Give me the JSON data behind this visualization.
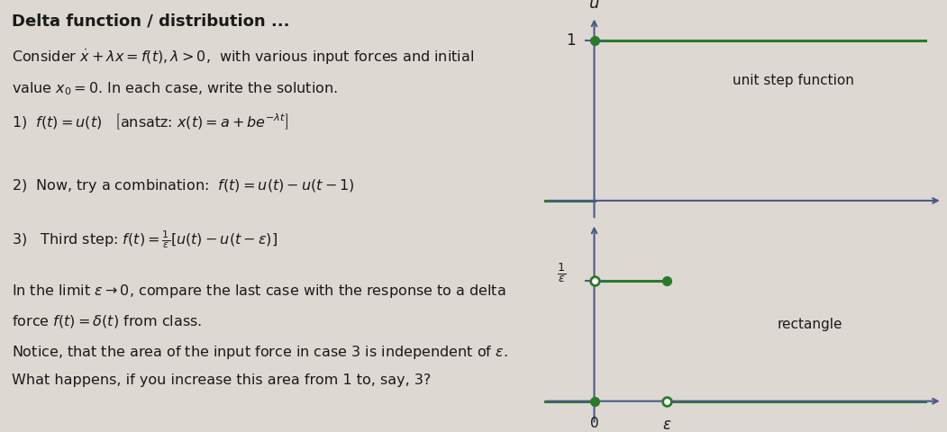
{
  "bg_color": "#ddd8d2",
  "text_color": "#1a1a1a",
  "axis_color": "#4a5a8a",
  "step_color": "#2a7a2a",
  "rect_color": "#2a7a2a",
  "title": "Delta function / distribution ...",
  "diagram1_annotation": "unit step function",
  "diagram2_annotation": "rectangle",
  "fs_title": 13,
  "fs_body": 11.5
}
